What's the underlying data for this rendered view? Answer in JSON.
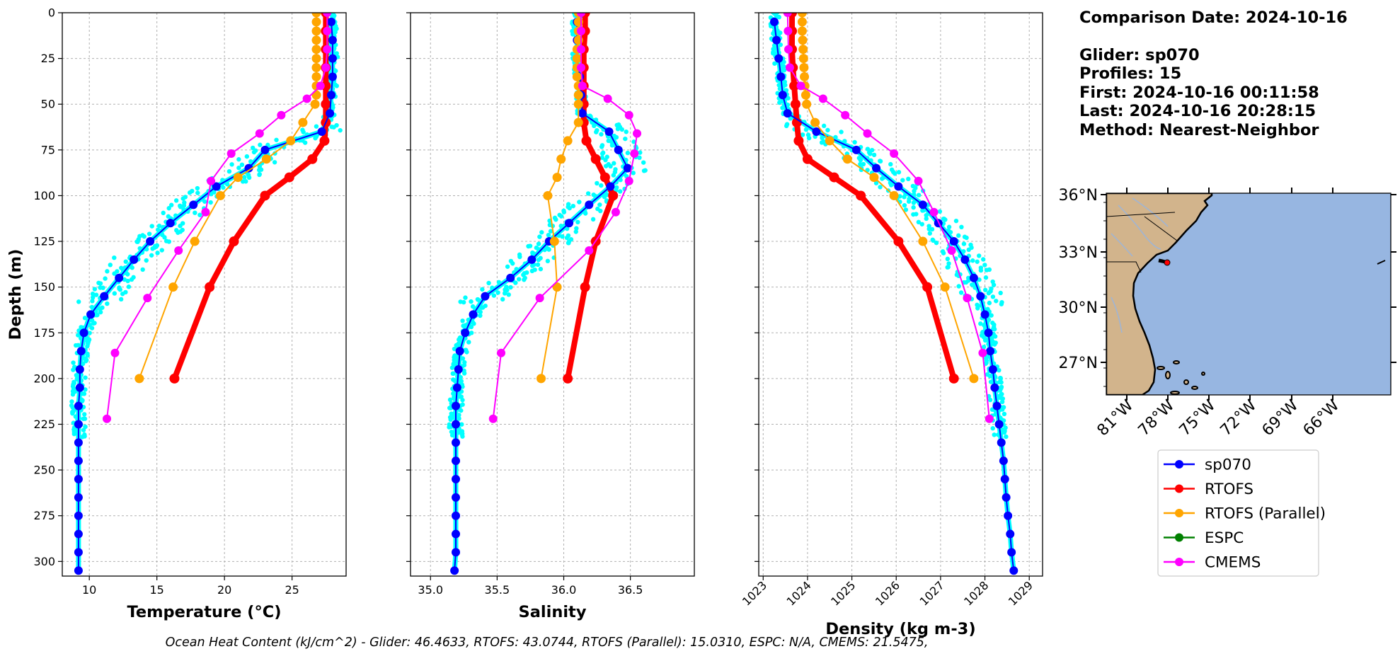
{
  "info": {
    "comparison_date": "Comparison Date: 2024-10-16",
    "glider": "Glider: sp070",
    "profiles": "Profiles: 15",
    "first": "First: 2024-10-16 00:11:58",
    "last": "Last: 2024-10-16 20:28:15",
    "method": "Method: Nearest-Neighbor"
  },
  "footer": "Ocean Heat Content (kJ/cm^2) - Glider: 46.4633,  RTOFS: 43.0744,  RTOFS (Parallel): 15.0310,  ESPC: N/A,  CMEMS: 21.5475,",
  "legend": [
    {
      "label": "sp070",
      "color": "#0000ff"
    },
    {
      "label": "RTOFS",
      "color": "#ff0000"
    },
    {
      "label": "RTOFS (Parallel)",
      "color": "#ffa500"
    },
    {
      "label": "ESPC",
      "color": "#008000"
    },
    {
      "label": "CMEMS",
      "color": "#ff00ff"
    }
  ],
  "colors": {
    "glider_raw": "#00ffff",
    "sp070": "#0000ff",
    "rtofs": "#ff0000",
    "rtofs_parallel": "#ffa500",
    "espc": "#008000",
    "cmems": "#ff00ff",
    "land": "#d2b48c",
    "ocean": "#97b6e1"
  },
  "chart_data": [
    {
      "type": "line",
      "xlabel": "Temperature (°C)",
      "ylabel": "Depth (m)",
      "xlim": [
        8,
        29
      ],
      "ylim": [
        308,
        0
      ],
      "y_inverted": true,
      "grid": true,
      "xticks": [
        10,
        15,
        20,
        25
      ],
      "yticks": [
        0,
        25,
        50,
        75,
        100,
        125,
        150,
        175,
        200,
        225,
        250,
        275,
        300
      ],
      "series": [
        {
          "name": "sp070",
          "depth": [
            5,
            15,
            25,
            35,
            45,
            55,
            65,
            75,
            85,
            95,
            105,
            115,
            125,
            135,
            145,
            155,
            165,
            175,
            185,
            195,
            205,
            215,
            225,
            235,
            245,
            255,
            265,
            275,
            285,
            295,
            305
          ],
          "values": [
            27.9,
            28.0,
            28.0,
            28.0,
            27.9,
            27.8,
            27.2,
            23.0,
            21.8,
            19.4,
            17.7,
            16.0,
            14.5,
            13.3,
            12.2,
            11.1,
            10.1,
            9.6,
            9.4,
            9.3,
            9.3,
            9.2,
            9.2,
            9.2,
            9.2,
            9.2,
            9.2,
            9.2,
            9.2,
            9.2,
            9.2
          ]
        },
        {
          "name": "RTOFS",
          "depth": [
            0,
            10,
            20,
            30,
            40,
            50,
            60,
            70,
            80,
            90,
            100,
            125,
            150,
            200
          ],
          "values": [
            27.5,
            27.5,
            27.5,
            27.5,
            27.5,
            27.5,
            27.5,
            27.4,
            26.5,
            24.8,
            23.0,
            20.7,
            18.9,
            16.3
          ]
        },
        {
          "name": "RTOFS (Parallel)",
          "depth": [
            0,
            5,
            10,
            15,
            20,
            25,
            30,
            35,
            40,
            45,
            50,
            60,
            70,
            80,
            90,
            100,
            125,
            150,
            200
          ],
          "values": [
            26.8,
            26.8,
            26.8,
            26.8,
            26.8,
            26.8,
            26.8,
            26.8,
            26.8,
            26.8,
            26.7,
            25.8,
            24.9,
            23.1,
            21.0,
            19.7,
            17.8,
            16.2,
            13.7
          ]
        },
        {
          "name": "CMEMS",
          "depth": [
            0,
            10,
            20,
            30,
            40,
            47,
            56,
            66,
            77,
            92,
            109,
            130,
            156,
            186,
            222
          ],
          "values": [
            27.6,
            27.6,
            27.6,
            27.5,
            27.1,
            26.1,
            24.2,
            22.6,
            20.5,
            19.0,
            18.6,
            16.6,
            14.3,
            11.9,
            11.3
          ]
        }
      ]
    },
    {
      "type": "line",
      "xlabel": "Salinity",
      "xlim": [
        34.85,
        36.98
      ],
      "ylim": [
        308,
        0
      ],
      "y_inverted": true,
      "grid": true,
      "xticks": [
        "35.0",
        "35.5",
        "36.0",
        "36.5"
      ],
      "series": [
        {
          "name": "sp070",
          "depth": [
            5,
            15,
            25,
            35,
            45,
            55,
            65,
            75,
            85,
            95,
            105,
            115,
            125,
            135,
            145,
            155,
            165,
            175,
            185,
            195,
            205,
            215,
            225,
            235,
            245,
            255,
            265,
            275,
            285,
            295,
            305
          ],
          "values": [
            36.1,
            36.1,
            36.1,
            36.12,
            36.13,
            36.14,
            36.34,
            36.41,
            36.48,
            36.35,
            36.19,
            36.04,
            35.89,
            35.76,
            35.6,
            35.41,
            35.32,
            35.26,
            35.22,
            35.21,
            35.2,
            35.19,
            35.19,
            35.19,
            35.19,
            35.19,
            35.19,
            35.19,
            35.19,
            35.19,
            35.18
          ]
        },
        {
          "name": "RTOFS",
          "depth": [
            0,
            10,
            20,
            30,
            40,
            50,
            60,
            70,
            80,
            90,
            100,
            125,
            150,
            200
          ],
          "values": [
            36.16,
            36.16,
            36.15,
            36.15,
            36.15,
            36.15,
            36.15,
            36.17,
            36.24,
            36.31,
            36.37,
            36.24,
            36.16,
            36.03
          ]
        },
        {
          "name": "RTOFS (Parallel)",
          "depth": [
            0,
            5,
            10,
            15,
            20,
            25,
            30,
            35,
            40,
            45,
            50,
            60,
            70,
            80,
            90,
            100,
            125,
            150,
            200
          ],
          "values": [
            36.11,
            36.11,
            36.11,
            36.11,
            36.1,
            36.1,
            36.1,
            36.1,
            36.11,
            36.11,
            36.11,
            36.11,
            36.03,
            35.98,
            35.95,
            35.88,
            35.93,
            35.95,
            35.83
          ]
        },
        {
          "name": "CMEMS",
          "depth": [
            0,
            10,
            20,
            30,
            40,
            47,
            56,
            66,
            77,
            92,
            109,
            130,
            156,
            186,
            222
          ],
          "values": [
            36.13,
            36.13,
            36.13,
            36.13,
            36.14,
            36.33,
            36.49,
            36.55,
            36.53,
            36.49,
            36.39,
            36.19,
            35.82,
            35.53,
            35.47
          ]
        }
      ]
    },
    {
      "type": "line",
      "xlabel": "Density (kg m-3)",
      "xlim": [
        1022.9,
        1029.3
      ],
      "ylim": [
        308,
        0
      ],
      "y_inverted": true,
      "grid": true,
      "xticks": [
        1023,
        1024,
        1025,
        1026,
        1027,
        1028,
        1029
      ],
      "series": [
        {
          "name": "sp070",
          "depth": [
            5,
            15,
            25,
            35,
            45,
            55,
            65,
            75,
            85,
            95,
            105,
            115,
            125,
            135,
            145,
            155,
            165,
            175,
            185,
            195,
            205,
            215,
            225,
            235,
            245,
            255,
            265,
            275,
            285,
            295,
            305
          ],
          "values": [
            1023.25,
            1023.3,
            1023.35,
            1023.4,
            1023.44,
            1023.55,
            1024.2,
            1025.1,
            1025.55,
            1026.05,
            1026.6,
            1026.95,
            1027.3,
            1027.55,
            1027.75,
            1027.9,
            1028.0,
            1028.08,
            1028.12,
            1028.18,
            1028.22,
            1028.27,
            1028.32,
            1028.37,
            1028.42,
            1028.45,
            1028.48,
            1028.52,
            1028.57,
            1028.6,
            1028.65
          ]
        },
        {
          "name": "RTOFS",
          "depth": [
            0,
            10,
            20,
            30,
            40,
            50,
            60,
            70,
            80,
            90,
            100,
            125,
            150,
            200
          ],
          "values": [
            1023.65,
            1023.65,
            1023.65,
            1023.67,
            1023.7,
            1023.73,
            1023.76,
            1023.8,
            1024.0,
            1024.6,
            1025.2,
            1026.05,
            1026.7,
            1027.3
          ]
        },
        {
          "name": "RTOFS (Parallel)",
          "depth": [
            0,
            5,
            10,
            15,
            20,
            25,
            30,
            35,
            40,
            45,
            50,
            60,
            70,
            80,
            90,
            100,
            125,
            150,
            200
          ],
          "values": [
            1023.88,
            1023.88,
            1023.88,
            1023.89,
            1023.9,
            1023.91,
            1023.92,
            1023.93,
            1023.94,
            1023.96,
            1023.98,
            1024.17,
            1024.5,
            1024.9,
            1025.5,
            1025.95,
            1026.6,
            1027.1,
            1027.75
          ]
        },
        {
          "name": "CMEMS",
          "depth": [
            0,
            10,
            20,
            30,
            40,
            47,
            56,
            66,
            77,
            92,
            109,
            130,
            156,
            186,
            222
          ],
          "values": [
            1023.55,
            1023.56,
            1023.57,
            1023.6,
            1023.85,
            1024.35,
            1024.85,
            1025.35,
            1025.95,
            1026.5,
            1026.85,
            1027.25,
            1027.6,
            1027.95,
            1028.1
          ]
        }
      ]
    }
  ],
  "map": {
    "lat_labels": [
      "36°N",
      "33°N",
      "30°N",
      "27°N"
    ],
    "lon_labels": [
      "81°W",
      "78°W",
      "75°W",
      "72°W",
      "69°W",
      "66°W"
    ]
  }
}
